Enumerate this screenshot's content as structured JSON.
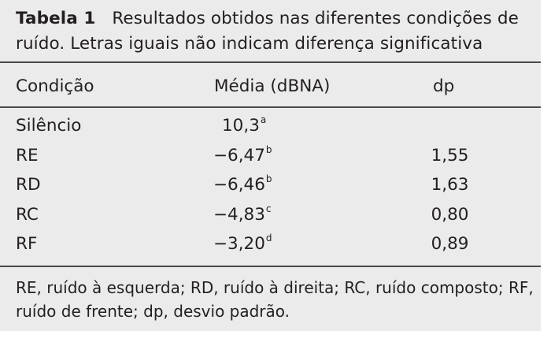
{
  "caption": {
    "label": "Tabela 1",
    "text": "Resultados obtidos nas diferentes condições de ruído. Letras iguais não indicam diferença significativa"
  },
  "headers": {
    "condition": "Condição",
    "mean": "Média (dBNA)",
    "sd": "dp"
  },
  "rows": [
    {
      "condition": "Silêncio",
      "mean": "10,3",
      "letter": "a",
      "sd": ""
    },
    {
      "condition": "RE",
      "mean": "−6,47",
      "letter": "b",
      "sd": "1,55"
    },
    {
      "condition": "RD",
      "mean": "−6,46",
      "letter": "b",
      "sd": "1,63"
    },
    {
      "condition": "RC",
      "mean": "−4,83",
      "letter": "c",
      "sd": "0,80"
    },
    {
      "condition": "RF",
      "mean": "−3,20",
      "letter": "d",
      "sd": "0,89"
    }
  ],
  "footnote": "RE, ruído à esquerda; RD, ruído à direita; RC, ruído composto; RF, ruído de frente; dp, desvio padrão."
}
